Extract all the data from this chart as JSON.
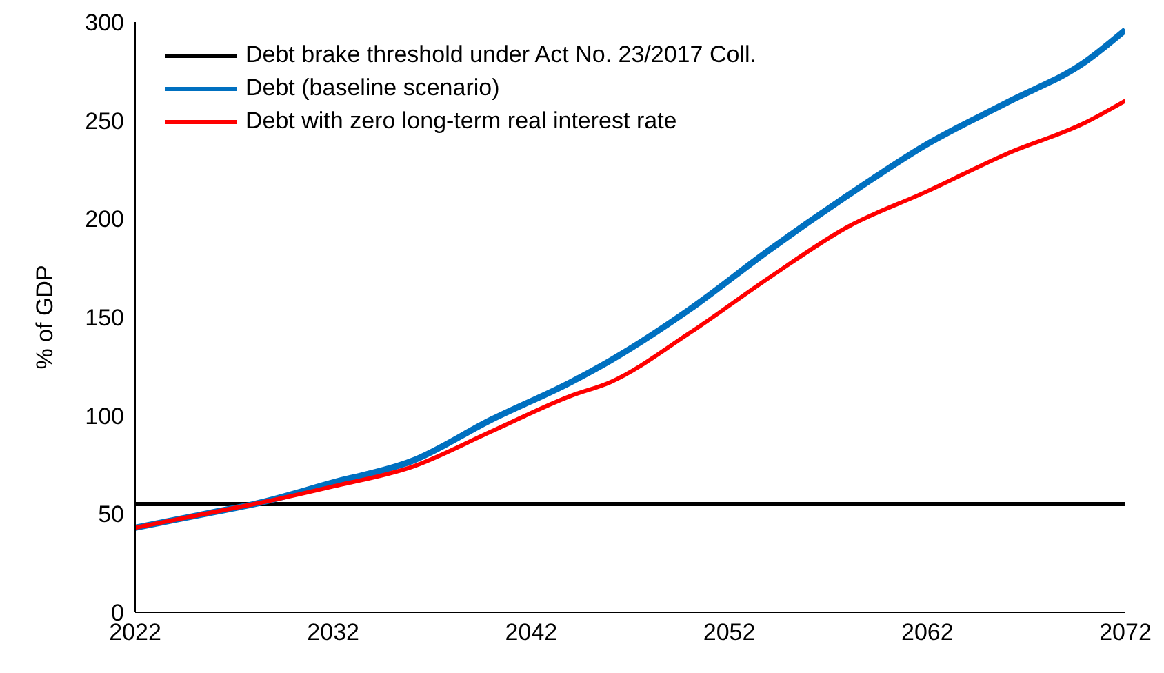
{
  "chart_data": {
    "type": "line",
    "ylabel": "% of GDP",
    "x": [
      2022,
      2024,
      2026,
      2028,
      2032,
      2036,
      2040,
      2044,
      2046,
      2050,
      2054,
      2058,
      2062,
      2066,
      2070,
      2072
    ],
    "series": [
      {
        "name": "Debt (baseline scenario)",
        "color": "#0070c0",
        "values": [
          43,
          47,
          51,
          55,
          66,
          77,
          98,
          117,
          128,
          154,
          184,
          212,
          238,
          259,
          280,
          296
        ]
      },
      {
        "name": "Debt with zero long-term real interest rate",
        "color": "#ff0000",
        "values": [
          43,
          47,
          51,
          55,
          64,
          74,
          92,
          110,
          117,
          142,
          170,
          196,
          214,
          233,
          249,
          260
        ]
      }
    ],
    "ref_lines": [
      {
        "axis": "y",
        "value": 55,
        "label": "Debt brake threshold under Act No. 23/2017 Coll.",
        "color": "#000000"
      }
    ],
    "xlim": [
      2022,
      2072
    ],
    "xticks": [
      2022,
      2032,
      2042,
      2052,
      2062,
      2072
    ],
    "ylim": [
      0,
      300
    ],
    "yticks": [
      0,
      50,
      100,
      150,
      200,
      250,
      300
    ],
    "grid": false,
    "legend": "top left",
    "marker": "none",
    "line_style": "solid"
  }
}
